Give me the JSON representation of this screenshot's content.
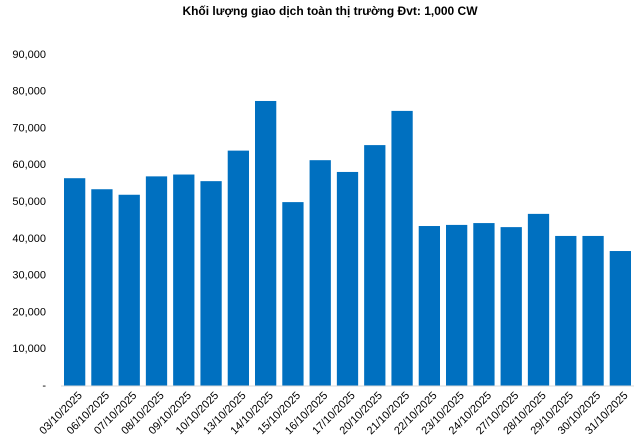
{
  "chart_data": {
    "type": "bar",
    "title": "Khối lượng giao dịch toàn thị trường Đvt: 1,000 CW",
    "categories": [
      "03/10/2025",
      "06/10/2025",
      "07/10/2025",
      "08/10/2025",
      "09/10/2025",
      "10/10/2025",
      "13/10/2025",
      "14/10/2025",
      "15/10/2025",
      "16/10/2025",
      "17/10/2025",
      "20/10/2025",
      "21/10/2025",
      "22/10/2025",
      "23/10/2025",
      "24/10/2025",
      "27/10/2025",
      "28/10/2025",
      "29/10/2025",
      "30/10/2025",
      "31/10/2025"
    ],
    "values": [
      56500,
      53500,
      52000,
      57000,
      57500,
      55700,
      64000,
      77500,
      50000,
      61400,
      58200,
      65500,
      74800,
      43500,
      43800,
      44300,
      43200,
      46800,
      40800,
      40800,
      36700
    ],
    "color": "#0070c0",
    "ylim": [
      0,
      90000
    ],
    "yticks": [
      {
        "value": 0,
        "label": "-"
      },
      {
        "value": 10000,
        "label": "10,000"
      },
      {
        "value": 20000,
        "label": "20,000"
      },
      {
        "value": 30000,
        "label": "30,000"
      },
      {
        "value": 40000,
        "label": "40,000"
      },
      {
        "value": 50000,
        "label": "50,000"
      },
      {
        "value": 60000,
        "label": "60,000"
      },
      {
        "value": 70000,
        "label": "70,000"
      },
      {
        "value": 80000,
        "label": "80,000"
      },
      {
        "value": 90000,
        "label": "90,000"
      }
    ],
    "grid": false
  }
}
